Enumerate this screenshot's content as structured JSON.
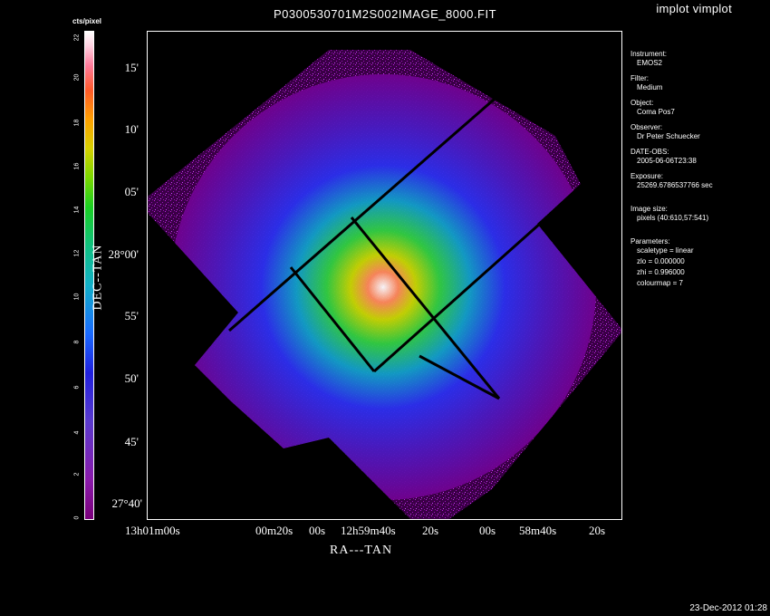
{
  "window": {
    "title": "P0300530701M2S002IMAGE_8000.FIT",
    "app_title": "implot vimplot",
    "timestamp": "23-Dec-2012 01:28"
  },
  "colorbar": {
    "title": "cts/pixel",
    "ticks": [
      "0",
      "2",
      "4",
      "6",
      "8",
      "10",
      "12",
      "14",
      "16",
      "18",
      "20",
      "22"
    ]
  },
  "axes": {
    "xlabel": "RA---TAN",
    "ylabel": "DEC--TAN",
    "yticks": [
      "15'",
      "10'",
      "05'",
      "28°00'",
      "55'",
      "50'",
      "45'",
      "27°40'"
    ],
    "xticks": [
      "13h01m00s",
      "00m20s",
      "00s",
      "12h59m40s",
      "20s",
      "00s",
      "58m40s",
      "20s"
    ]
  },
  "info": {
    "instrument_label": "Instrument:",
    "instrument": "EMOS2",
    "filter_label": "Filter:",
    "filter": "Medium",
    "object_label": "Object:",
    "object": "Coma Pos7",
    "observer_label": "Observer:",
    "observer": "Dr Peter Schuecker",
    "date_label": "DATE-OBS:",
    "date": "2005-06-06T23:38",
    "exposure_label": "Exposure:",
    "exposure": "25269.6786537766 sec",
    "size_label": "Image size:",
    "size": "pixels (40:610,57:541)",
    "params_label": "Parameters:",
    "scaletype": "scaletype = linear",
    "zlo": "zlo = 0.000000",
    "zhi": "zhi = 0.996000",
    "colourmap": "colourmap = 7"
  },
  "colors": {
    "background": "#000000",
    "outer": "#7a0090",
    "mid": "#2a2aff",
    "core": "#20d060",
    "peak": "#ffffff"
  }
}
